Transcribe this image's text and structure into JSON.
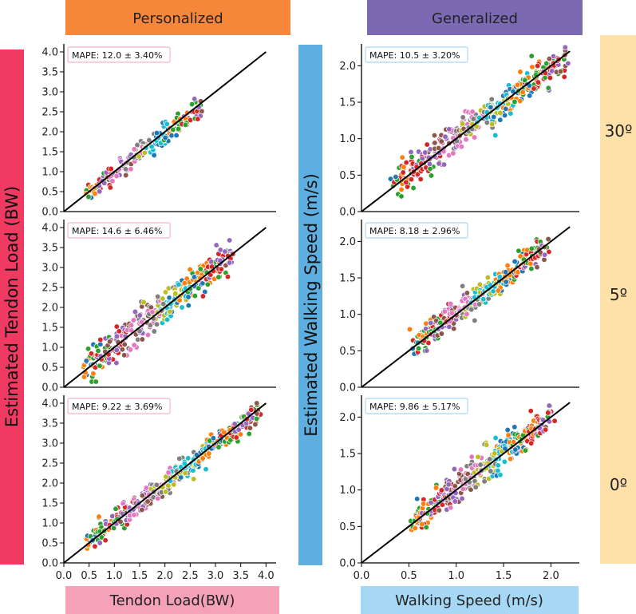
{
  "headers": {
    "left": "Personalized",
    "right": "Generalized",
    "left_color": "#f5863a",
    "right_color": "#7b6ab3"
  },
  "side_labels": {
    "left_ylabel": "Estimated Tendon Load (BW)",
    "left_color": "#ef3a62",
    "right_ylabel": "Estimated Walking Speed (m/s)",
    "right_color": "#5eaee0",
    "incline_color": "#fde1a8"
  },
  "footers": {
    "left": "Tendon Load(BW)",
    "right": "Walking Speed (m/s)",
    "left_color": "#f5a1b7",
    "right_color": "#a6d8f5"
  },
  "inclines": [
    "30º",
    "5º",
    "0º"
  ],
  "palette": [
    "#1f77b4",
    "#ff7f0e",
    "#2ca02c",
    "#d62728",
    "#9467bd",
    "#8c564b",
    "#e377c2",
    "#7f7f7f",
    "#bcbd22",
    "#17becf"
  ],
  "chart_data": [
    {
      "id": "tendon-30",
      "type": "scatter",
      "column": "Personalized",
      "incline": "30º",
      "xlabel": "Tendon Load(BW)",
      "ylabel": "Estimated Tendon Load (BW)",
      "xlim": [
        0.0,
        4.2
      ],
      "ylim": [
        0.0,
        4.2
      ],
      "xticks": [],
      "yticks": [
        0.0,
        0.5,
        1.0,
        1.5,
        2.0,
        2.5,
        3.0,
        3.5,
        4.0
      ],
      "mape": "MAPE: 12.0 ± 3.40%",
      "mape_border": "#f4b6c2",
      "identity_line": [
        [
          0,
          0
        ],
        [
          4.0,
          4.0
        ]
      ],
      "cluster_centers_x": [
        0.55,
        0.85,
        1.1,
        1.3,
        1.5,
        1.7,
        1.9,
        2.1,
        2.3,
        2.55
      ],
      "points": {
        "n": 180,
        "x_range": [
          0.45,
          2.75
        ],
        "noise": 0.13,
        "slope": 0.94,
        "intercept": 0.05
      }
    },
    {
      "id": "tendon-5",
      "type": "scatter",
      "column": "Personalized",
      "incline": "5º",
      "xlabel": "Tendon Load(BW)",
      "ylabel": "Estimated Tendon Load (BW)",
      "xlim": [
        0.0,
        4.2
      ],
      "ylim": [
        0.0,
        4.2
      ],
      "xticks": [],
      "yticks": [
        0.0,
        0.5,
        1.0,
        1.5,
        2.0,
        2.5,
        3.0,
        3.5,
        4.0
      ],
      "mape": "MAPE: 14.6 ± 6.46%",
      "mape_border": "#f4b6c2",
      "identity_line": [
        [
          0,
          0
        ],
        [
          4.0,
          4.0
        ]
      ],
      "points": {
        "n": 320,
        "x_range": [
          0.45,
          3.3
        ],
        "noise": 0.22,
        "slope": 0.98,
        "intercept": 0.05
      }
    },
    {
      "id": "tendon-0",
      "type": "scatter",
      "column": "Personalized",
      "incline": "0º",
      "xlabel": "Tendon Load(BW)",
      "ylabel": "Estimated Tendon Load (BW)",
      "xlim": [
        0.0,
        4.2
      ],
      "ylim": [
        0.0,
        4.2
      ],
      "xticks": [
        0.0,
        0.5,
        1.0,
        1.5,
        2.0,
        2.5,
        3.0,
        3.5,
        4.0
      ],
      "yticks": [
        0.0,
        0.5,
        1.0,
        1.5,
        2.0,
        2.5,
        3.0,
        3.5,
        4.0
      ],
      "mape": "MAPE: 9.22 ± 3.69%",
      "mape_border": "#f4b6c2",
      "identity_line": [
        [
          0,
          0
        ],
        [
          4.0,
          4.0
        ]
      ],
      "points": {
        "n": 360,
        "x_range": [
          0.5,
          3.85
        ],
        "noise": 0.16,
        "slope": 0.98,
        "intercept": 0.03
      }
    },
    {
      "id": "speed-30",
      "type": "scatter",
      "column": "Generalized",
      "incline": "30º",
      "xlabel": "Walking Speed (m/s)",
      "ylabel": "Estimated Walking Speed (m/s)",
      "xlim": [
        0.0,
        2.3
      ],
      "ylim": [
        0.0,
        2.3
      ],
      "xticks": [],
      "yticks": [
        0.0,
        0.5,
        1.0,
        1.5,
        2.0
      ],
      "mape": "MAPE: 10.5 ± 3.20%",
      "mape_border": "#a6d8f5",
      "identity_line": [
        [
          0,
          0
        ],
        [
          2.2,
          2.2
        ]
      ],
      "points": {
        "n": 360,
        "x_range": [
          0.35,
          2.15
        ],
        "noise": 0.11,
        "slope": 0.95,
        "intercept": 0.07
      }
    },
    {
      "id": "speed-5",
      "type": "scatter",
      "column": "Generalized",
      "incline": "5º",
      "xlabel": "Walking Speed (m/s)",
      "ylabel": "Estimated Walking Speed (m/s)",
      "xlim": [
        0.0,
        2.3
      ],
      "ylim": [
        0.0,
        2.3
      ],
      "xticks": [],
      "yticks": [
        0.0,
        0.5,
        1.0,
        1.5,
        2.0
      ],
      "mape": "MAPE: 8.18 ± 2.96%",
      "mape_border": "#a6d8f5",
      "identity_line": [
        [
          0,
          0
        ],
        [
          2.2,
          2.2
        ]
      ],
      "points": {
        "n": 320,
        "x_range": [
          0.55,
          1.95
        ],
        "noise": 0.09,
        "slope": 0.92,
        "intercept": 0.1
      }
    },
    {
      "id": "speed-0",
      "type": "scatter",
      "column": "Generalized",
      "incline": "0º",
      "xlabel": "Walking Speed (m/s)",
      "ylabel": "Estimated Walking Speed (m/s)",
      "xlim": [
        0.0,
        2.3
      ],
      "ylim": [
        0.0,
        2.3
      ],
      "xticks": [
        0.0,
        0.5,
        1.0,
        1.5,
        2.0
      ],
      "yticks": [
        0.0,
        0.5,
        1.0,
        1.5,
        2.0
      ],
      "mape": "MAPE: 9.86 ± 5.17%",
      "mape_border": "#a6d8f5",
      "identity_line": [
        [
          0,
          0
        ],
        [
          2.2,
          2.2
        ]
      ],
      "points": {
        "n": 340,
        "x_range": [
          0.55,
          2.0
        ],
        "noise": 0.11,
        "slope": 0.98,
        "intercept": 0.05
      }
    }
  ]
}
